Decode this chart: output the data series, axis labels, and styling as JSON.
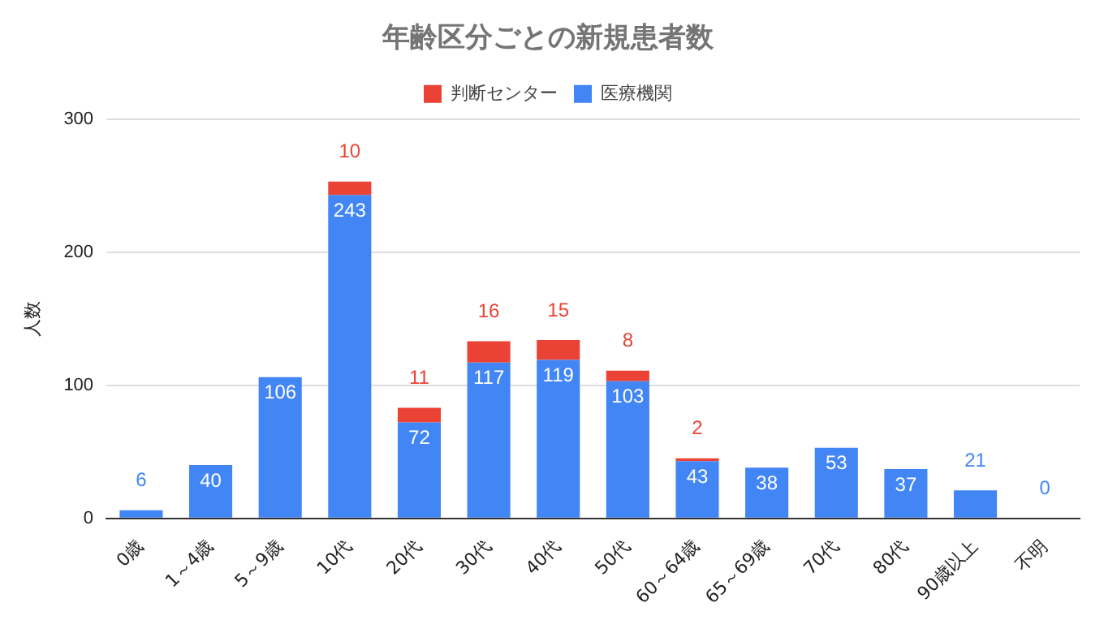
{
  "chart_data": {
    "type": "bar",
    "title": "年齢区分ごとの新規患者数",
    "ylabel": "人数",
    "stacked": true,
    "data_labels": true,
    "grid": "y",
    "legend": "top",
    "categories": [
      "0歳",
      "1～4歳",
      "5～9歳",
      "10代",
      "20代",
      "30代",
      "40代",
      "50代",
      "60～64歳",
      "65～69歳",
      "70代",
      "80代",
      "90歳以上",
      "不明"
    ],
    "series": [
      {
        "name": "医療機関",
        "color": "#4285f4",
        "values": [
          6,
          40,
          106,
          243,
          72,
          117,
          119,
          103,
          43,
          38,
          53,
          37,
          21,
          0
        ]
      },
      {
        "name": "判断センター",
        "color": "#ea4335",
        "values": [
          null,
          null,
          null,
          10,
          11,
          16,
          15,
          8,
          2,
          null,
          null,
          null,
          null,
          null
        ]
      }
    ],
    "ylim": [
      0,
      300
    ],
    "yticks": [
      0,
      100,
      200,
      300
    ]
  }
}
